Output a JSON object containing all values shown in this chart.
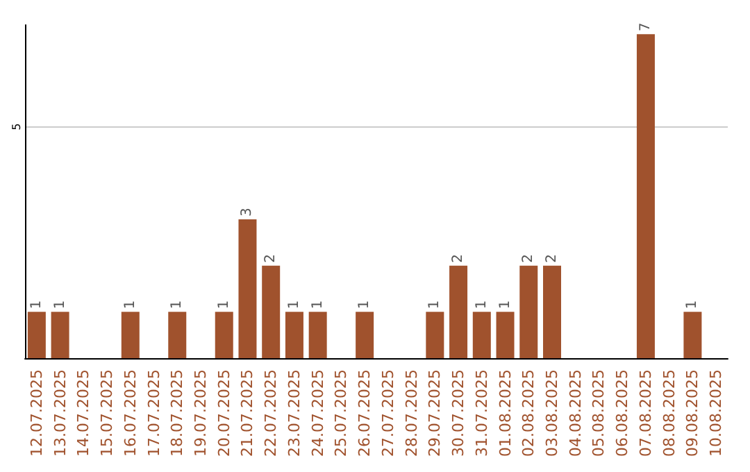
{
  "chart_data": {
    "type": "bar",
    "categories": [
      "12.07.2025",
      "13.07.2025",
      "14.07.2025",
      "15.07.2025",
      "16.07.2025",
      "17.07.2025",
      "18.07.2025",
      "19.07.2025",
      "20.07.2025",
      "21.07.2025",
      "22.07.2025",
      "23.07.2025",
      "24.07.2025",
      "25.07.2025",
      "26.07.2025",
      "27.07.2025",
      "28.07.2025",
      "29.07.2025",
      "30.07.2025",
      "31.07.2025",
      "01.08.2025",
      "02.08.2025",
      "03.08.2025",
      "04.08.2025",
      "05.08.2025",
      "06.08.2025",
      "07.08.2025",
      "08.08.2025",
      "09.08.2025",
      "10.08.2025"
    ],
    "values": [
      1,
      1,
      null,
      null,
      1,
      null,
      1,
      null,
      1,
      3,
      2,
      1,
      1,
      null,
      1,
      null,
      null,
      1,
      2,
      1,
      1,
      2,
      2,
      null,
      null,
      null,
      7,
      null,
      1,
      null
    ],
    "color": "#a0522d",
    "ylim": [
      0,
      7.2
    ],
    "yticks": [
      5
    ],
    "grid": "y",
    "data_labels": true
  }
}
